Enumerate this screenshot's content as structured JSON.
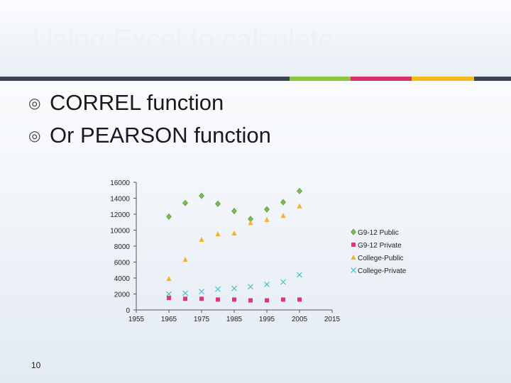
{
  "slide": {
    "title": "Using Excel to calculate",
    "bullets": [
      {
        "icon": "circle-bullet-icon",
        "text": "CORREL function"
      },
      {
        "icon": "circle-bullet-icon",
        "text": "Or PEARSON function"
      }
    ],
    "page_number": "10",
    "bullet_symbol": "◎"
  },
  "colors": {
    "stripe_dark": "#3a4454",
    "stripe_green": "#8cc63f",
    "stripe_magenta": "#d6336c",
    "stripe_yellow": "#f6b91a",
    "g912_public": "#7cbd4f",
    "g912_private": "#e0347e",
    "college_public": "#f5b223",
    "college_private": "#3fc1c9"
  },
  "chart_data": {
    "type": "scatter",
    "title": "",
    "xlabel": "",
    "ylabel": "",
    "xlim": [
      1955,
      2015
    ],
    "ylim": [
      0,
      16000
    ],
    "x_ticks": [
      "1955",
      "1965",
      "1975",
      "1985",
      "1995",
      "2005",
      "2015"
    ],
    "y_ticks": [
      "0",
      "2000",
      "4000",
      "6000",
      "8000",
      "10000",
      "12000",
      "14000",
      "16000"
    ],
    "grid": false,
    "legend_position": "right",
    "series": [
      {
        "name": "G9-12 Public",
        "marker": "diamond",
        "color": "#7cbd4f",
        "points": [
          [
            1965,
            11700
          ],
          [
            1970,
            13400
          ],
          [
            1975,
            14300
          ],
          [
            1980,
            13300
          ],
          [
            1985,
            12400
          ],
          [
            1990,
            11400
          ],
          [
            1995,
            12600
          ],
          [
            2000,
            13500
          ],
          [
            2005,
            14900
          ]
        ]
      },
      {
        "name": "G9-12 Private",
        "marker": "square",
        "color": "#e0347e",
        "points": [
          [
            1965,
            1500
          ],
          [
            1970,
            1400
          ],
          [
            1975,
            1400
          ],
          [
            1980,
            1300
          ],
          [
            1985,
            1300
          ],
          [
            1990,
            1200
          ],
          [
            1995,
            1200
          ],
          [
            2000,
            1300
          ],
          [
            2005,
            1300
          ]
        ]
      },
      {
        "name": "College-Public",
        "marker": "triangle",
        "color": "#f5b223",
        "points": [
          [
            1965,
            3900
          ],
          [
            1970,
            6300
          ],
          [
            1975,
            8800
          ],
          [
            1980,
            9500
          ],
          [
            1985,
            9600
          ],
          [
            1990,
            10900
          ],
          [
            1995,
            11300
          ],
          [
            2000,
            11800
          ],
          [
            2005,
            13000
          ]
        ]
      },
      {
        "name": "College-Private",
        "marker": "x",
        "color": "#3fc1c9",
        "points": [
          [
            1965,
            2000
          ],
          [
            1970,
            2100
          ],
          [
            1975,
            2300
          ],
          [
            1980,
            2600
          ],
          [
            1985,
            2700
          ],
          [
            1990,
            2900
          ],
          [
            1995,
            3200
          ],
          [
            2000,
            3500
          ],
          [
            2005,
            4400
          ]
        ]
      }
    ]
  }
}
